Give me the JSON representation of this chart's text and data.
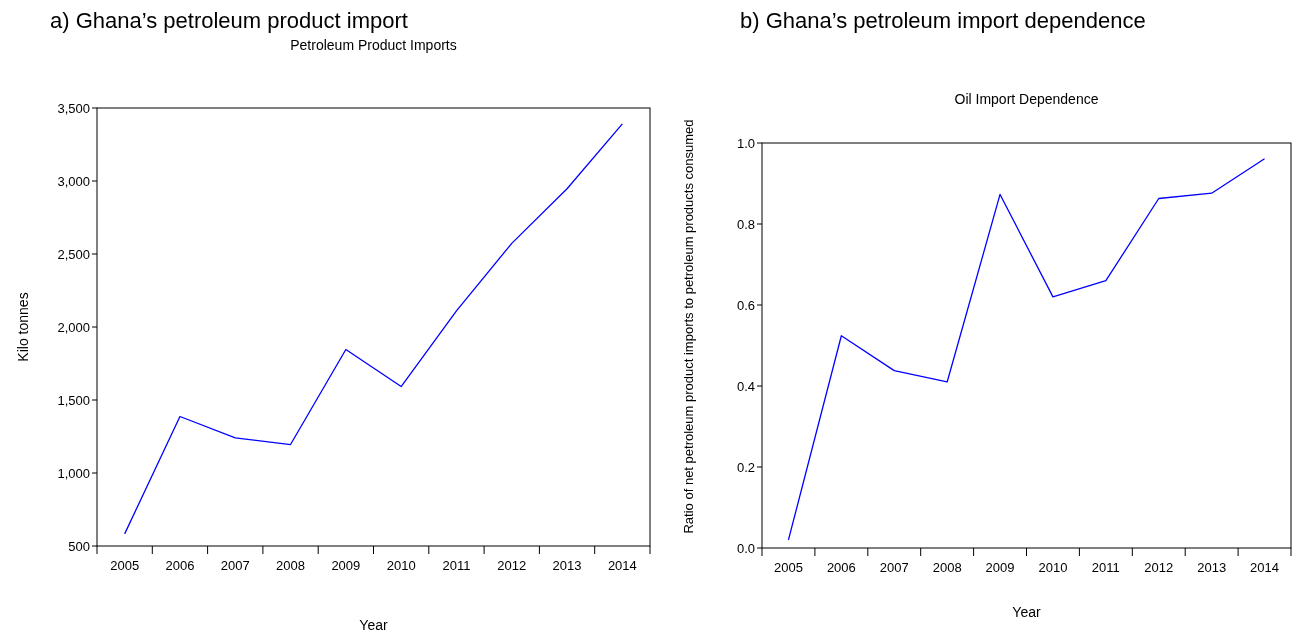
{
  "chart_data": [
    {
      "type": "line",
      "title": "a)   Ghana’s petroleum product import",
      "subtitle": "Petroleum Product Imports",
      "xlabel": "Year",
      "ylabel": "Kilo tonnes",
      "categories": [
        "2005",
        "2006",
        "2007",
        "2008",
        "2009",
        "2010",
        "2011",
        "2012",
        "2013",
        "2014"
      ],
      "series": [
        {
          "color": "#0000ff",
          "values": [
            583,
            1387,
            1240,
            1195,
            1846,
            1592,
            2111,
            2573,
            2947,
            3391
          ]
        }
      ],
      "ylim": [
        500,
        3500
      ],
      "yticks": [
        {
          "value": 500,
          "label": "500"
        },
        {
          "value": 1000,
          "label": "1,000"
        },
        {
          "value": 1500,
          "label": "1,500"
        },
        {
          "value": 2000,
          "label": "2,000"
        },
        {
          "value": 2500,
          "label": "2,500"
        },
        {
          "value": 3000,
          "label": "3,000"
        },
        {
          "value": 3500,
          "label": "3,500"
        }
      ],
      "grid": false
    },
    {
      "type": "line",
      "title": "b)   Ghana’s petroleum import dependence",
      "subtitle": "Oil Import Dependence",
      "xlabel": "Year",
      "ylabel": "Ratio of net petroleum product imports to petroleum products consumed",
      "categories": [
        "2005",
        "2006",
        "2007",
        "2008",
        "2009",
        "2010",
        "2011",
        "2012",
        "2013",
        "2014"
      ],
      "series": [
        {
          "color": "#0000ff",
          "values": [
            0.02,
            0.524,
            0.438,
            0.41,
            0.873,
            0.62,
            0.66,
            0.863,
            0.876,
            0.961
          ]
        }
      ],
      "ylim": [
        0,
        1
      ],
      "yticks": [
        {
          "value": 0,
          "label": "0.0"
        },
        0.2,
        0.4,
        0.6,
        0.8,
        {
          "value": 1,
          "label": "1.0"
        }
      ],
      "grid": false
    }
  ]
}
